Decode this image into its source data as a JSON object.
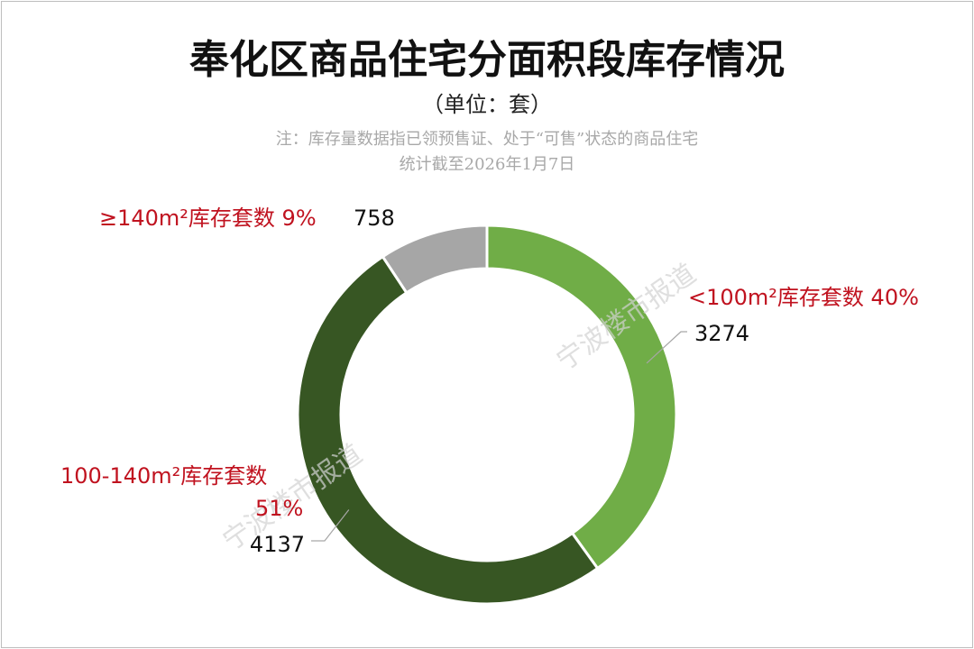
{
  "header": {
    "title": "奉化区商品住宅分面积段库存情况",
    "unit": "（单位：套）",
    "note_line1": "注：库存量数据指已领预售证、处于“可售”状态的商品住宅",
    "note_line2": "统计截至2026年1月7日"
  },
  "watermark": "宁波楼市报道",
  "chart_data": {
    "type": "pie",
    "title": "奉化区商品住宅分面积段库存情况",
    "subtitle": "（单位：套）",
    "categories": [
      "<100m²库存套数",
      "100-140m²库存套数",
      "≥140m²库存套数"
    ],
    "values": [
      3274,
      4137,
      758
    ],
    "percent_labels": [
      "40%",
      "51%",
      "9%"
    ],
    "colors": [
      "#70ad47",
      "#375623",
      "#a6a6a6"
    ],
    "donut": true,
    "legend": "none"
  }
}
